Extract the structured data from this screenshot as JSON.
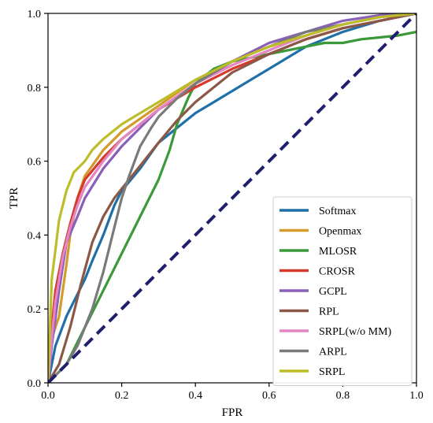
{
  "chart_data": {
    "type": "line",
    "title": "",
    "xlabel": "FPR",
    "ylabel": "TPR",
    "xlim": [
      0,
      1
    ],
    "ylim": [
      0,
      1
    ],
    "xticks": [
      "0.0",
      "0.2",
      "0.4",
      "0.6",
      "0.8",
      "1.0"
    ],
    "yticks": [
      "0.0",
      "0.2",
      "0.4",
      "0.6",
      "0.8",
      "1.0"
    ],
    "grid": false,
    "legend_position": "lower-right",
    "diagonal": {
      "x": [
        0,
        1
      ],
      "y": [
        0,
        1
      ],
      "color": "#1f1f6e",
      "style": "dashed"
    },
    "series": [
      {
        "name": "Softmax",
        "color": "#1f6fa8",
        "x": [
          0,
          0.02,
          0.05,
          0.08,
          0.1,
          0.12,
          0.15,
          0.18,
          0.2,
          0.25,
          0.3,
          0.35,
          0.4,
          0.45,
          0.5,
          0.55,
          0.6,
          0.65,
          0.7,
          0.8,
          0.9,
          1.0
        ],
        "y": [
          0,
          0.1,
          0.18,
          0.24,
          0.28,
          0.33,
          0.4,
          0.48,
          0.52,
          0.58,
          0.65,
          0.69,
          0.73,
          0.76,
          0.79,
          0.82,
          0.85,
          0.88,
          0.91,
          0.95,
          0.98,
          1.0
        ]
      },
      {
        "name": "Openmax",
        "color": "#d39a2c",
        "x": [
          0,
          0.01,
          0.03,
          0.05,
          0.06,
          0.08,
          0.1,
          0.15,
          0.2,
          0.3,
          0.4,
          0.5,
          0.6,
          0.7,
          0.8,
          0.9,
          1.0
        ],
        "y": [
          0,
          0.12,
          0.18,
          0.32,
          0.4,
          0.5,
          0.56,
          0.63,
          0.68,
          0.75,
          0.82,
          0.87,
          0.91,
          0.94,
          0.97,
          0.99,
          1.0
        ]
      },
      {
        "name": "MLOSR",
        "color": "#3a9a3a",
        "x": [
          0,
          0.05,
          0.1,
          0.15,
          0.2,
          0.25,
          0.3,
          0.33,
          0.35,
          0.38,
          0.4,
          0.45,
          0.5,
          0.55,
          0.6,
          0.65,
          0.7,
          0.75,
          0.8,
          0.85,
          0.9,
          0.95,
          1.0
        ],
        "y": [
          0,
          0.05,
          0.15,
          0.25,
          0.35,
          0.45,
          0.55,
          0.63,
          0.7,
          0.77,
          0.81,
          0.85,
          0.87,
          0.88,
          0.89,
          0.9,
          0.91,
          0.92,
          0.92,
          0.93,
          0.935,
          0.94,
          0.95
        ]
      },
      {
        "name": "CROSR",
        "color": "#d63a2a",
        "x": [
          0,
          0.01,
          0.02,
          0.04,
          0.06,
          0.08,
          0.1,
          0.15,
          0.2,
          0.25,
          0.3,
          0.4,
          0.5,
          0.6,
          0.7,
          0.8,
          0.9,
          1.0
        ],
        "y": [
          0,
          0.15,
          0.25,
          0.35,
          0.43,
          0.5,
          0.55,
          0.61,
          0.66,
          0.7,
          0.74,
          0.8,
          0.85,
          0.89,
          0.93,
          0.96,
          0.98,
          1.0
        ]
      },
      {
        "name": "GCPL",
        "color": "#8a5fb8",
        "x": [
          0,
          0.01,
          0.03,
          0.05,
          0.08,
          0.1,
          0.15,
          0.2,
          0.3,
          0.4,
          0.5,
          0.6,
          0.7,
          0.8,
          0.9,
          1.0
        ],
        "y": [
          0,
          0.1,
          0.25,
          0.38,
          0.45,
          0.5,
          0.58,
          0.64,
          0.74,
          0.81,
          0.87,
          0.92,
          0.95,
          0.98,
          0.995,
          1.0
        ]
      },
      {
        "name": "RPL",
        "color": "#8b5746",
        "x": [
          0,
          0.03,
          0.06,
          0.09,
          0.12,
          0.15,
          0.18,
          0.22,
          0.26,
          0.3,
          0.35,
          0.4,
          0.45,
          0.5,
          0.6,
          0.7,
          0.8,
          0.9,
          1.0
        ],
        "y": [
          0,
          0.05,
          0.15,
          0.27,
          0.38,
          0.45,
          0.5,
          0.55,
          0.6,
          0.65,
          0.71,
          0.76,
          0.8,
          0.84,
          0.89,
          0.93,
          0.96,
          0.98,
          1.0
        ]
      },
      {
        "name": "SRPL(w/o MM)",
        "color": "#e386c3",
        "x": [
          0,
          0.01,
          0.02,
          0.04,
          0.06,
          0.08,
          0.1,
          0.15,
          0.2,
          0.3,
          0.4,
          0.5,
          0.6,
          0.7,
          0.8,
          0.9,
          1.0
        ],
        "y": [
          0,
          0.12,
          0.22,
          0.34,
          0.42,
          0.48,
          0.53,
          0.6,
          0.66,
          0.74,
          0.81,
          0.86,
          0.9,
          0.94,
          0.97,
          0.99,
          1.0
        ]
      },
      {
        "name": "ARPL",
        "color": "#7a7a7a",
        "x": [
          0,
          0.05,
          0.08,
          0.1,
          0.12,
          0.15,
          0.18,
          0.2,
          0.22,
          0.25,
          0.28,
          0.3,
          0.35,
          0.4,
          0.5,
          0.6,
          0.7,
          0.8,
          0.9,
          1.0
        ],
        "y": [
          0,
          0.05,
          0.1,
          0.15,
          0.2,
          0.3,
          0.42,
          0.5,
          0.56,
          0.64,
          0.69,
          0.72,
          0.77,
          0.81,
          0.87,
          0.91,
          0.95,
          0.97,
          0.99,
          1.0
        ]
      },
      {
        "name": "SRPL",
        "color": "#bdbd2a",
        "x": [
          0,
          0.01,
          0.02,
          0.03,
          0.05,
          0.07,
          0.1,
          0.12,
          0.15,
          0.2,
          0.25,
          0.3,
          0.4,
          0.5,
          0.6,
          0.7,
          0.8,
          0.9,
          1.0
        ],
        "y": [
          0,
          0.28,
          0.36,
          0.44,
          0.52,
          0.57,
          0.6,
          0.63,
          0.66,
          0.7,
          0.73,
          0.76,
          0.82,
          0.87,
          0.91,
          0.94,
          0.97,
          0.99,
          1.0
        ]
      }
    ]
  }
}
